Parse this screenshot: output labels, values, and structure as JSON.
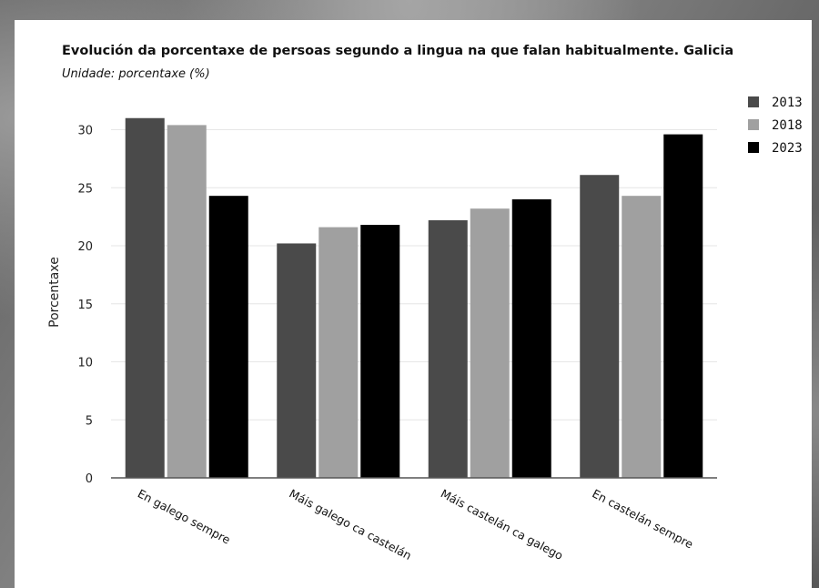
{
  "chart_data": {
    "type": "bar",
    "title": "Evolución da porcentaxe de persoas segundo a lingua na que falan habitualmente. Galicia",
    "subtitle": "Unidade: porcentaxe (%)",
    "xlabel": "",
    "ylabel": "Porcentaxe",
    "ylim": [
      0,
      32
    ],
    "yticks": [
      0,
      5,
      10,
      15,
      20,
      25,
      30
    ],
    "grid": true,
    "legend_position": "top-right",
    "categories": [
      "En galego sempre",
      "Máis galego ca castelán",
      "Máis castelán ca galego",
      "En castelán sempre"
    ],
    "series": [
      {
        "name": "2013",
        "color": "#4a4a4a",
        "values": [
          31.0,
          20.2,
          22.2,
          26.1
        ]
      },
      {
        "name": "2018",
        "color": "#a0a0a0",
        "values": [
          30.4,
          21.6,
          23.2,
          24.3
        ]
      },
      {
        "name": "2023",
        "color": "#000000",
        "values": [
          24.3,
          21.8,
          24.0,
          29.6
        ]
      }
    ]
  }
}
